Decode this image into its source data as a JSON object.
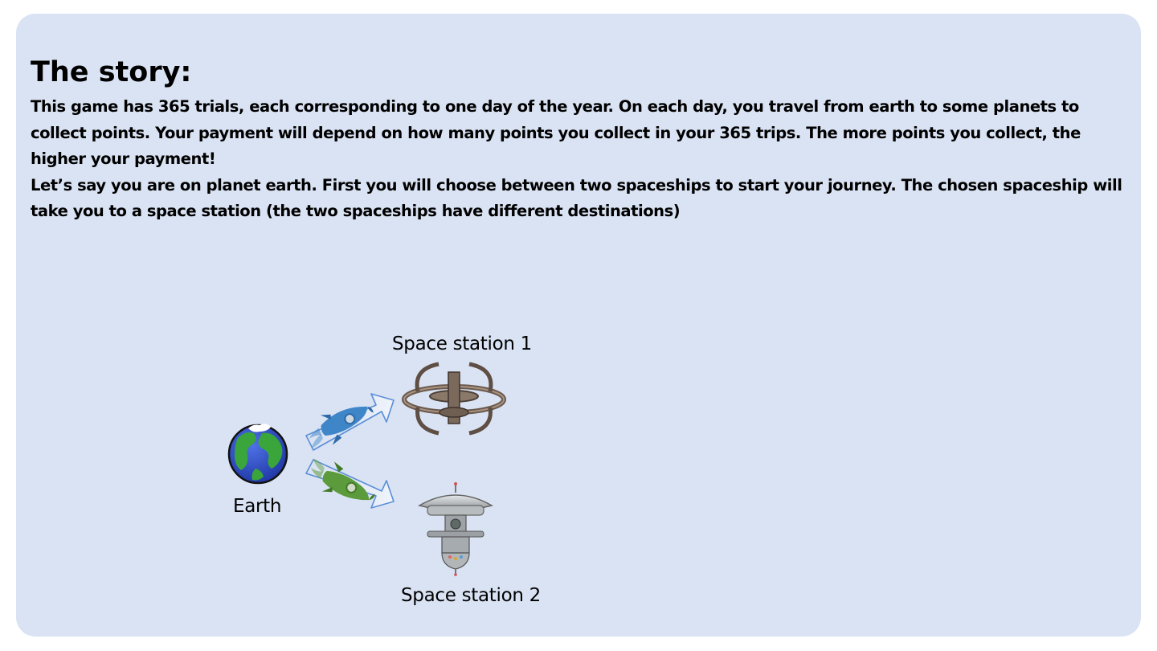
{
  "slide": {
    "title": "The story:",
    "paragraphs": [
      "This game has 365 trials, each corresponding to one day of the year. On each day, you travel from earth to some planets to collect points. Your payment will depend on how many points you collect in your 365 trips. The more points you collect, the higher your payment!",
      "Let’s say you are on planet earth. First you will choose between two spaceships to start your journey. The chosen spaceship will take you to a space station (the two spaceships have different destinations)"
    ],
    "background_color": "#dae3f3"
  },
  "diagram": {
    "earth_label": "Earth",
    "station1_label": "Space station 1",
    "station2_label": "Space station 2",
    "icons": [
      "earth-icon",
      "blue-rocket-icon",
      "green-rocket-icon",
      "space-station-1-icon",
      "space-station-2-icon"
    ],
    "colors": {
      "blue_rocket": "#3f86c9",
      "green_rocket": "#5c9b3c",
      "earth_ocean": "#2f4fc9",
      "earth_land": "#3aa63a"
    }
  }
}
